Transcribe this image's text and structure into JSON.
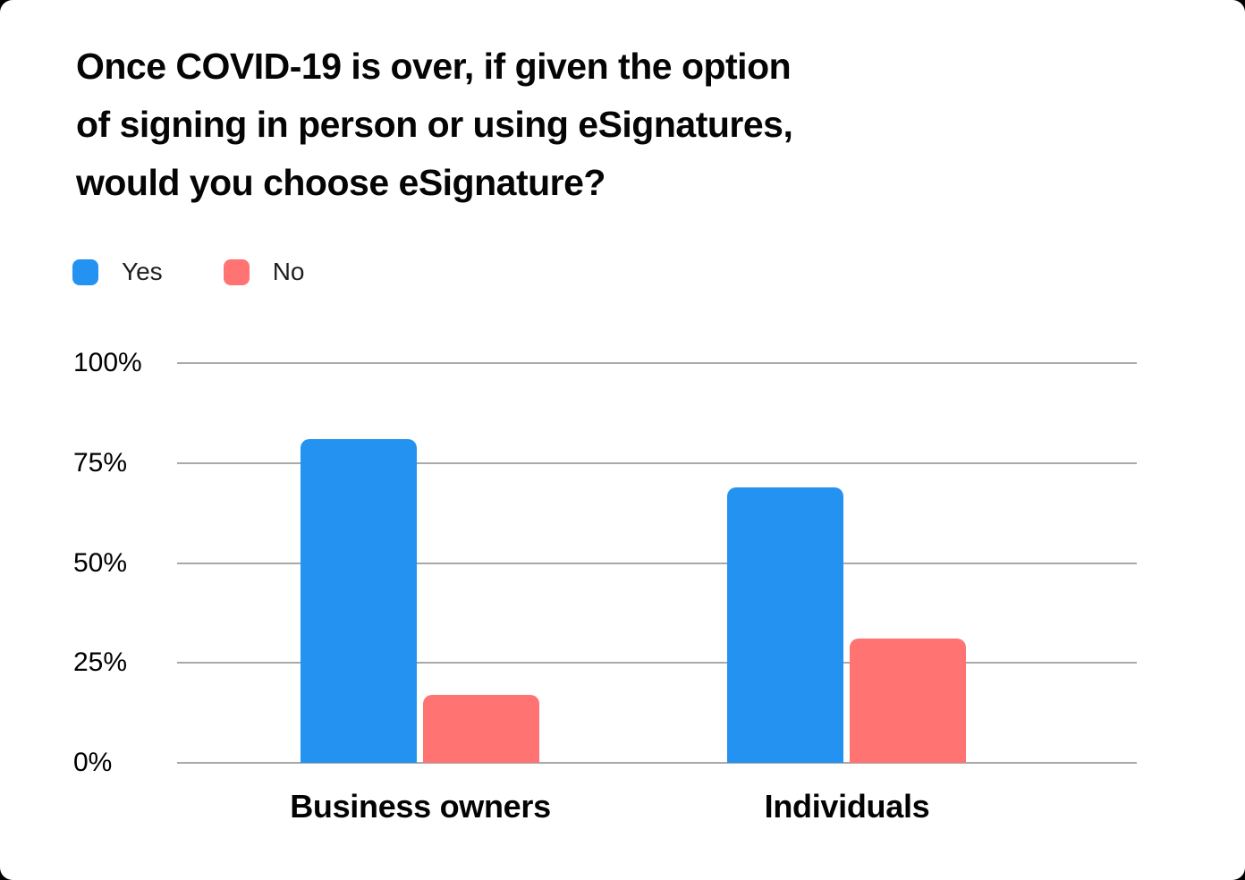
{
  "title_lines": [
    "Once COVID-19 is over, if given the option",
    "of signing in person or using eSignatures,",
    "would you choose eSignature?"
  ],
  "chart_data": {
    "type": "bar",
    "title": "Once COVID-19 is over, if given the option of signing in person or using eSignatures, would you choose eSignature?",
    "categories": [
      "Business owners",
      "Individuals"
    ],
    "series": [
      {
        "name": "Yes",
        "color": "#2492F0",
        "values": [
          81,
          69
        ]
      },
      {
        "name": "No",
        "color": "#FF7372",
        "values": [
          17,
          31
        ]
      }
    ],
    "xlabel": "",
    "ylabel": "",
    "ylim": [
      0,
      100
    ],
    "y_ticks": [
      "0%",
      "25%",
      "50%",
      "75%",
      "100%"
    ],
    "grid": true,
    "legend_position": "top-left",
    "gridline_color": "#A9A9A9",
    "background_color": "#FFFFFF"
  }
}
